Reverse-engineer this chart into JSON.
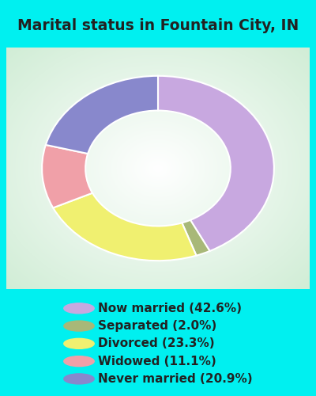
{
  "title": "Marital status in Fountain City, IN",
  "categories": [
    "Now married",
    "Separated",
    "Divorced",
    "Widowed",
    "Never married"
  ],
  "values": [
    42.6,
    2.0,
    23.3,
    11.1,
    20.9
  ],
  "colors": [
    "#c8a8e0",
    "#a8b878",
    "#f0f070",
    "#f0a0a8",
    "#8888cc"
  ],
  "legend_colors": [
    "#c8a8e0",
    "#a8b878",
    "#f0f070",
    "#f0a0a8",
    "#8888cc"
  ],
  "legend_labels": [
    "Now married (42.6%)",
    "Separated (2.0%)",
    "Divorced (23.3%)",
    "Widowed (11.1%)",
    "Never married (20.9%)"
  ],
  "bg_cyan": "#00f0f0",
  "title_color": "#222222",
  "title_fontsize": 13.5,
  "legend_fontsize": 11,
  "outer_r": 0.88,
  "inner_r": 0.55,
  "startangle_deg": 90,
  "figsize": [
    4.0,
    5.0
  ],
  "dpi": 100
}
